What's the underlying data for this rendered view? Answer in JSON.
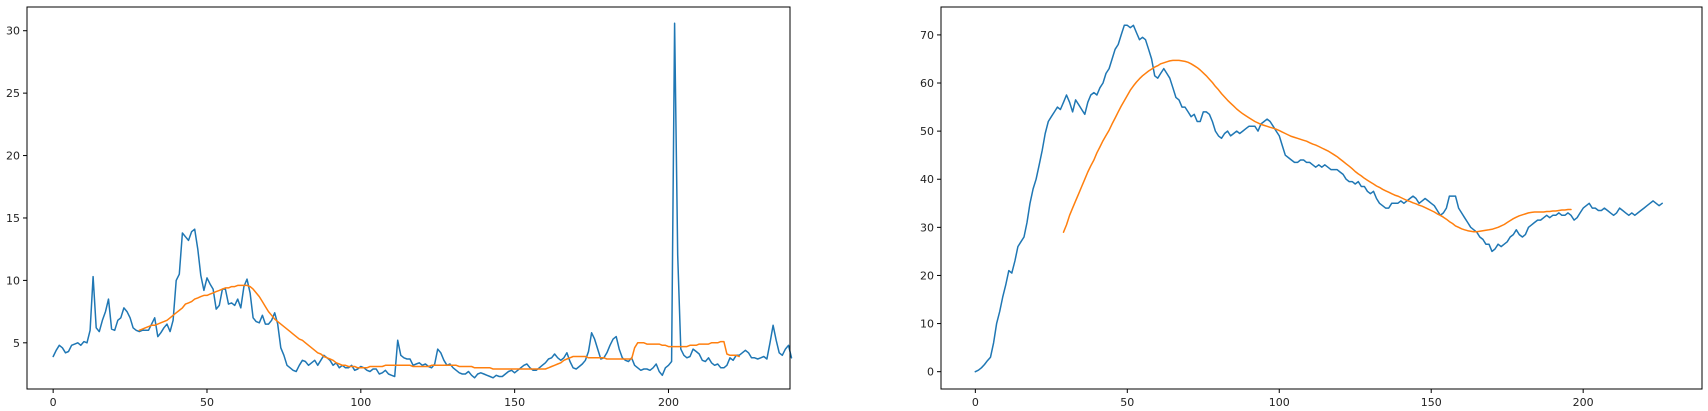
{
  "chart_data": [
    {
      "type": "line",
      "title": "",
      "xlabel": "",
      "ylabel": "",
      "xlim": [
        -8.5,
        239.5
      ],
      "ylim": [
        1.3,
        31.9
      ],
      "grid": false,
      "xticks": [
        0,
        50,
        100,
        150,
        200
      ],
      "yticks": [
        5,
        10,
        15,
        20,
        25,
        30
      ],
      "colors": [
        "#1f77b4",
        "#ff7f0e"
      ],
      "series": [
        {
          "x_start": 0,
          "values": [
            3.9,
            4.4,
            4.8,
            4.6,
            4.2,
            4.3,
            4.8,
            4.9,
            5.0,
            4.8,
            5.1,
            5.0,
            6.0,
            10.3,
            6.2,
            5.9,
            6.8,
            7.5,
            8.5,
            6.1,
            6.0,
            6.8,
            7.0,
            7.8,
            7.5,
            7.0,
            6.2,
            6.0,
            5.9,
            6.0,
            6.0,
            6.0,
            6.5,
            7.0,
            5.5,
            5.8,
            6.2,
            6.5,
            5.9,
            6.8,
            10.0,
            10.5,
            13.8,
            13.5,
            13.2,
            13.9,
            14.1,
            12.5,
            10.4,
            9.2,
            10.2,
            9.7,
            9.3,
            7.7,
            8.0,
            9.3,
            9.3,
            8.1,
            8.2,
            8.0,
            8.5,
            7.8,
            9.5,
            10.1,
            9.0,
            7.0,
            6.7,
            6.6,
            7.2,
            6.5,
            6.5,
            6.8,
            7.4,
            6.5,
            4.6,
            4.0,
            3.2,
            3.0,
            2.8,
            2.7,
            3.2,
            3.6,
            3.5,
            3.2,
            3.4,
            3.6,
            3.2,
            3.6,
            4.0,
            3.8,
            3.6,
            3.2,
            3.4,
            3.0,
            3.2,
            3.0,
            3.0,
            3.2,
            2.8,
            2.9,
            3.1,
            3.0,
            2.8,
            2.7,
            2.9,
            2.9,
            2.5,
            2.6,
            2.8,
            2.5,
            2.4,
            2.3,
            5.2,
            4.0,
            3.8,
            3.7,
            3.7,
            3.2,
            3.3,
            3.4,
            3.2,
            3.3,
            3.1,
            3.0,
            3.3,
            4.5,
            4.2,
            3.6,
            3.2,
            3.3,
            3.0,
            2.8,
            2.6,
            2.5,
            2.5,
            2.7,
            2.4,
            2.2,
            2.5,
            2.6,
            2.5,
            2.4,
            2.3,
            2.2,
            2.4,
            2.3,
            2.3,
            2.5,
            2.7,
            2.8,
            2.6,
            2.8,
            3.0,
            3.2,
            3.3,
            3.0,
            2.8,
            2.8,
            3.0,
            3.2,
            3.4,
            3.7,
            3.8,
            4.1,
            3.8,
            3.6,
            3.8,
            4.2,
            3.5,
            3.0,
            2.9,
            3.1,
            3.3,
            3.6,
            4.3,
            5.8,
            5.3,
            4.5,
            3.7,
            3.8,
            4.2,
            4.8,
            5.3,
            5.5,
            4.5,
            3.8,
            3.6,
            3.5,
            3.8,
            3.2,
            3.0,
            2.8,
            2.9,
            2.9,
            2.8,
            3.0,
            3.3,
            2.7,
            2.4,
            3.0,
            3.2,
            3.5,
            30.6,
            12.0,
            4.5,
            4.0,
            3.8,
            3.9,
            4.5,
            4.3,
            4.1,
            3.6,
            3.5,
            3.8,
            3.4,
            3.2,
            3.3,
            3.0,
            3.0,
            3.2,
            3.8,
            3.6,
            4.0,
            4.0,
            4.2,
            4.4,
            4.2,
            3.8,
            3.8,
            3.7,
            3.8,
            3.9,
            3.7,
            5.0,
            6.4,
            5.2,
            4.2,
            4.0,
            4.5,
            4.8,
            3.8
          ]
        },
        {
          "x_start": 28,
          "values": [
            6.0,
            6.1,
            6.2,
            6.3,
            6.4,
            6.4,
            6.5,
            6.6,
            6.7,
            6.8,
            7.0,
            7.2,
            7.4,
            7.6,
            7.8,
            8.1,
            8.2,
            8.3,
            8.5,
            8.6,
            8.7,
            8.8,
            8.8,
            8.9,
            9.0,
            9.1,
            9.2,
            9.3,
            9.4,
            9.4,
            9.5,
            9.5,
            9.6,
            9.6,
            9.6,
            9.6,
            9.5,
            9.3,
            9.0,
            8.7,
            8.3,
            7.9,
            7.5,
            7.2,
            6.9,
            6.7,
            6.5,
            6.3,
            6.1,
            5.9,
            5.7,
            5.5,
            5.3,
            5.2,
            5.0,
            4.8,
            4.6,
            4.4,
            4.2,
            4.1,
            3.9,
            3.8,
            3.7,
            3.6,
            3.4,
            3.3,
            3.2,
            3.2,
            3.1,
            3.1,
            3.1,
            3.0,
            3.0,
            3.0,
            3.0,
            3.1,
            3.1,
            3.1,
            3.1,
            3.1,
            3.2,
            3.2,
            3.2,
            3.2,
            3.2,
            3.2,
            3.2,
            3.2,
            3.2,
            3.1,
            3.1,
            3.1,
            3.1,
            3.1,
            3.1,
            3.2,
            3.2,
            3.2,
            3.2,
            3.2,
            3.2,
            3.2,
            3.2,
            3.2,
            3.1,
            3.1,
            3.1,
            3.1,
            3.1,
            3.0,
            3.0,
            3.0,
            3.0,
            3.0,
            3.0,
            2.9,
            2.9,
            2.9,
            2.9,
            2.9,
            2.9,
            2.9,
            2.9,
            2.9,
            2.9,
            2.9,
            2.9,
            2.9,
            2.9,
            2.9,
            2.9,
            2.9,
            2.9,
            3.0,
            3.1,
            3.2,
            3.3,
            3.4,
            3.6,
            3.7,
            3.8,
            3.9,
            3.9,
            3.9,
            3.9,
            3.9,
            3.8,
            3.8,
            3.8,
            3.8,
            3.8,
            3.8,
            3.7,
            3.7,
            3.7,
            3.7,
            3.7,
            3.7,
            3.7,
            3.7,
            3.7,
            4.6,
            5.0,
            5.0,
            5.0,
            4.9,
            4.9,
            4.9,
            4.9,
            4.9,
            4.8,
            4.8,
            4.7,
            4.7,
            4.7,
            4.7,
            4.7,
            4.7,
            4.7,
            4.8,
            4.8,
            4.8,
            4.9,
            4.9,
            4.9,
            4.9,
            5.0,
            5.0,
            5.0,
            5.1,
            5.1,
            4.1,
            4.0,
            4.0,
            4.0,
            3.9
          ]
        }
      ]
    },
    {
      "type": "line",
      "title": "",
      "xlabel": "",
      "ylabel": "",
      "xlim": [
        -11.3,
        239.1
      ],
      "ylim": [
        -3.6,
        75.8
      ],
      "grid": false,
      "xticks": [
        0,
        50,
        100,
        150,
        200
      ],
      "yticks": [
        0,
        10,
        20,
        30,
        40,
        50,
        60,
        70
      ],
      "colors": [
        "#1f77b4",
        "#ff7f0e"
      ],
      "series": [
        {
          "x_start": 0,
          "values": [
            0.0,
            0.3,
            0.8,
            1.5,
            2.3,
            3.0,
            6.0,
            10.0,
            12.5,
            15.5,
            18.0,
            21.0,
            20.5,
            23.0,
            26.0,
            27.0,
            28.0,
            31.0,
            35.0,
            38.0,
            40.0,
            43.0,
            46.0,
            49.5,
            52.0,
            53.0,
            54.0,
            55.0,
            54.5,
            56.0,
            57.5,
            56.0,
            54.0,
            56.5,
            55.5,
            54.5,
            53.5,
            56.0,
            57.5,
            58.0,
            57.5,
            59.0,
            60.0,
            62.0,
            63.0,
            65.0,
            67.0,
            68.0,
            70.0,
            72.0,
            72.0,
            71.5,
            72.0,
            70.5,
            69.0,
            69.5,
            69.0,
            67.0,
            65.0,
            61.5,
            61.0,
            62.0,
            63.0,
            62.0,
            61.0,
            59.0,
            57.0,
            56.5,
            55.0,
            55.0,
            54.0,
            53.0,
            53.5,
            52.0,
            52.0,
            54.0,
            54.0,
            53.5,
            52.0,
            50.0,
            49.0,
            48.5,
            49.5,
            50.0,
            49.0,
            49.5,
            50.0,
            49.5,
            50.0,
            50.5,
            51.0,
            51.0,
            51.0,
            50.0,
            51.5,
            52.0,
            52.5,
            52.0,
            51.0,
            50.0,
            49.0,
            47.0,
            45.0,
            44.5,
            44.0,
            43.5,
            43.5,
            44.0,
            44.0,
            43.5,
            43.5,
            43.0,
            42.5,
            43.0,
            42.5,
            43.0,
            42.5,
            42.0,
            42.0,
            42.0,
            41.5,
            41.0,
            40.0,
            39.5,
            39.5,
            39.0,
            39.5,
            38.5,
            38.5,
            37.5,
            37.0,
            37.5,
            36.0,
            35.0,
            34.5,
            34.0,
            34.0,
            35.0,
            35.0,
            35.0,
            35.5,
            35.0,
            35.5,
            36.0,
            36.5,
            36.0,
            35.0,
            35.5,
            36.0,
            35.5,
            35.0,
            34.5,
            33.5,
            32.5,
            33.0,
            34.0,
            36.5,
            36.5,
            36.5,
            34.0,
            33.0,
            32.0,
            31.0,
            30.0,
            29.5,
            29.0,
            28.0,
            27.5,
            26.5,
            26.5,
            25.0,
            25.5,
            26.5,
            26.0,
            26.5,
            27.0,
            28.0,
            28.5,
            29.5,
            28.5,
            28.0,
            28.5,
            30.0,
            30.5,
            31.0,
            31.5,
            31.5,
            32.0,
            32.5,
            32.0,
            32.5,
            32.5,
            33.0,
            32.5,
            32.5,
            33.0,
            32.5,
            31.5,
            32.0,
            33.0,
            34.0,
            34.5,
            35.0,
            34.0,
            34.0,
            33.5,
            33.5,
            34.0,
            33.5,
            33.0,
            32.5,
            33.0,
            34.0,
            33.5,
            33.0,
            32.5,
            33.0,
            32.5,
            33.0,
            33.5,
            34.0,
            34.5,
            35.0,
            35.5,
            35.0,
            34.5,
            35.0
          ]
        },
        {
          "x_start": 29,
          "values": [
            29.0,
            30.5,
            32.5,
            34.0,
            35.5,
            37.0,
            38.5,
            40.0,
            41.5,
            42.8,
            44.0,
            45.5,
            46.7,
            48.0,
            49.1,
            50.2,
            51.5,
            52.7,
            54.0,
            55.2,
            56.3,
            57.4,
            58.5,
            59.4,
            60.2,
            60.9,
            61.5,
            62.0,
            62.5,
            62.9,
            63.3,
            63.6,
            64.0,
            64.2,
            64.4,
            64.6,
            64.7,
            64.7,
            64.7,
            64.6,
            64.5,
            64.3,
            64.0,
            63.6,
            63.2,
            62.7,
            62.1,
            61.5,
            60.8,
            60.1,
            59.3,
            58.6,
            57.8,
            57.1,
            56.4,
            55.8,
            55.2,
            54.6,
            54.1,
            53.6,
            53.2,
            52.8,
            52.4,
            52.0,
            51.7,
            51.4,
            51.2,
            51.0,
            50.8,
            50.6,
            50.4,
            50.1,
            49.8,
            49.5,
            49.2,
            48.9,
            48.7,
            48.5,
            48.3,
            48.1,
            47.9,
            47.6,
            47.3,
            47.1,
            46.8,
            46.5,
            46.2,
            45.9,
            45.5,
            45.1,
            44.7,
            44.2,
            43.7,
            43.2,
            42.7,
            42.2,
            41.6,
            41.1,
            40.7,
            40.2,
            39.8,
            39.4,
            39.0,
            38.6,
            38.3,
            37.9,
            37.6,
            37.3,
            37.0,
            36.7,
            36.5,
            36.2,
            35.9,
            35.6,
            35.4,
            35.1,
            34.9,
            34.6,
            34.4,
            34.1,
            33.8,
            33.5,
            33.2,
            32.8,
            32.5,
            32.1,
            31.7,
            31.2,
            30.8,
            30.3,
            30.0,
            29.7,
            29.5,
            29.3,
            29.2,
            29.1,
            29.1,
            29.2,
            29.3,
            29.4,
            29.5,
            29.6,
            29.8,
            30.0,
            30.3,
            30.6,
            31.0,
            31.4,
            31.8,
            32.1,
            32.4,
            32.6,
            32.8,
            33.0,
            33.1,
            33.2,
            33.2,
            33.2,
            33.2,
            33.3,
            33.3,
            33.4,
            33.4,
            33.5,
            33.6,
            33.6,
            33.7,
            33.7
          ]
        }
      ]
    }
  ]
}
